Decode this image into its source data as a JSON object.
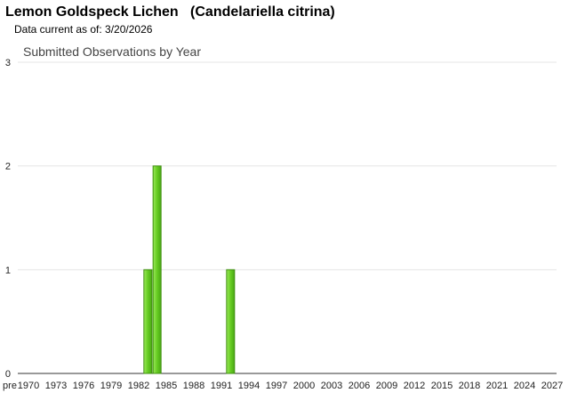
{
  "header": {
    "title": "Lemon Goldspeck Lichen   (Candelariella citrina)",
    "subtitle": "Data current as of: 3/20/2026"
  },
  "chart_data": {
    "type": "bar",
    "title": "Submitted Observations by Year",
    "xlabel": "",
    "ylabel": "",
    "ylim": [
      0,
      3
    ],
    "yticks": [
      "0",
      "1",
      "2",
      "3"
    ],
    "x_tick_labels": [
      "pre",
      "1970",
      "1973",
      "1976",
      "1979",
      "1982",
      "1985",
      "1988",
      "1991",
      "1994",
      "1997",
      "2000",
      "2003",
      "2006",
      "2009",
      "2012",
      "2015",
      "2018",
      "2021",
      "2024",
      "2027"
    ],
    "categories": [
      "1983",
      "1984",
      "1992"
    ],
    "values": [
      1,
      2,
      1
    ],
    "bar_color": "#66cc22",
    "grid": true
  }
}
